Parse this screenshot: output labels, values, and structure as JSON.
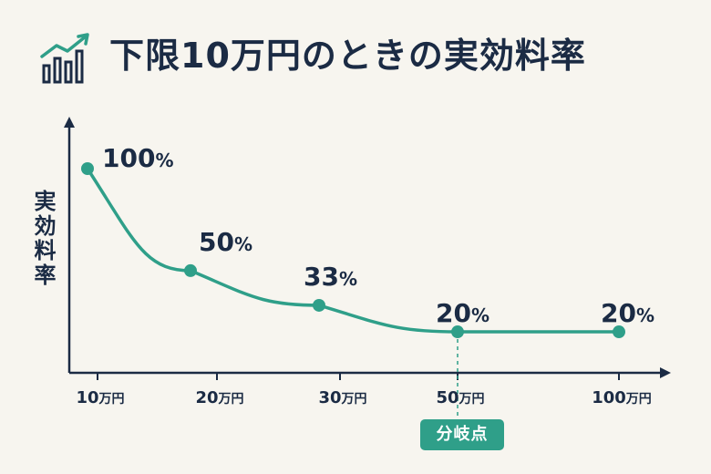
{
  "chart_data": {
    "type": "line",
    "title": "下限10万円のときの実効料率",
    "ylabel": "実効料率",
    "categories": [
      "10万円",
      "20万円",
      "30万円",
      "50万円",
      "100万円"
    ],
    "series": [
      {
        "values": [
          100,
          50,
          33,
          20,
          20
        ]
      }
    ],
    "data_labels": [
      "100%",
      "50%",
      "33%",
      "20%",
      "20%"
    ],
    "x_tick_numbers": [
      "10",
      "20",
      "30",
      "50",
      "100"
    ],
    "x_tick_unit": "万円",
    "data_label_unit": "%",
    "data_label_numbers": [
      "100",
      "50",
      "33",
      "20",
      "20"
    ],
    "annotation": {
      "label": "分岐点",
      "at": "50万円"
    },
    "grid": false,
    "colors": {
      "line": "#2f9f89",
      "text": "#1b2b44",
      "background": "#f7f5ef"
    }
  },
  "icons": {
    "title_icon": "bar-chart-trend-icon"
  }
}
